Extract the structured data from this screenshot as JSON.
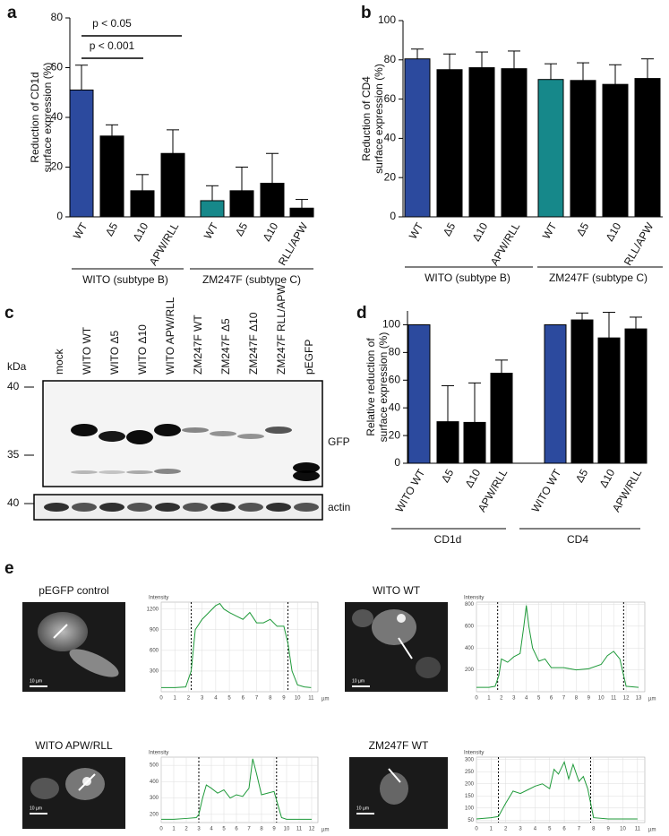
{
  "chart_data": [
    {
      "type": "bar",
      "panel": "a",
      "ylabel": [
        "Reduction of CD1d",
        "surface expression (%)"
      ],
      "categories": [
        "WT",
        "Δ5",
        "Δ10",
        "APW/RLL",
        "WT",
        "Δ5",
        "Δ10",
        "RLL/APW"
      ],
      "values": [
        51,
        32.5,
        10.5,
        25.5,
        6.5,
        10.5,
        13.5,
        3.5
      ],
      "errors": [
        10,
        4.5,
        6.5,
        9.5,
        6,
        9.5,
        12,
        3.5
      ],
      "colors": [
        "#2c4a9e",
        "#000000",
        "#000000",
        "#000000",
        "#16888a",
        "#000000",
        "#000000",
        "#000000"
      ],
      "ylim": [
        0,
        80
      ],
      "yticks": [
        0,
        20,
        40,
        60,
        80
      ],
      "groups": [
        "WITO (subtype B)",
        "ZM247F (subtype C)"
      ],
      "annotations": [
        "p < 0.05",
        "p < 0.001"
      ]
    },
    {
      "type": "bar",
      "panel": "b",
      "ylabel": [
        "Reduction of CD4",
        "surface expression (%)"
      ],
      "categories": [
        "WT",
        "Δ5",
        "Δ10",
        "APW/RLL",
        "WT",
        "Δ5",
        "Δ10",
        "RLL/APW"
      ],
      "values": [
        80.5,
        75,
        76,
        75.5,
        70,
        69.5,
        67.5,
        70.5
      ],
      "errors": [
        5,
        8,
        8,
        9,
        8,
        9,
        10,
        10
      ],
      "colors": [
        "#2c4a9e",
        "#000000",
        "#000000",
        "#000000",
        "#16888a",
        "#000000",
        "#000000",
        "#000000"
      ],
      "ylim": [
        0,
        100
      ],
      "yticks": [
        0,
        20,
        40,
        60,
        80,
        100
      ],
      "groups": [
        "WITO (subtype B)",
        "ZM247F (subtype C)"
      ]
    },
    {
      "type": "bar",
      "panel": "d",
      "ylabel": [
        "Relative reduction of",
        "surface expression (%)"
      ],
      "categories": [
        "WITO WT",
        "Δ5",
        "Δ10",
        "APW/RLL",
        "WITO WT",
        "Δ5",
        "Δ10",
        "APW/RLL"
      ],
      "values": [
        100,
        30,
        29.5,
        65,
        100,
        103.5,
        90.5,
        97
      ],
      "errors": [
        0,
        26,
        28.5,
        9.5,
        0,
        5,
        18.5,
        8.5
      ],
      "colors": [
        "#2c4a9e",
        "#000000",
        "#000000",
        "#000000",
        "#2c4a9e",
        "#000000",
        "#000000",
        "#000000"
      ],
      "ylim": [
        0,
        110
      ],
      "yticks": [
        0,
        20,
        40,
        60,
        80,
        100
      ],
      "groups": [
        "CD1d",
        "CD4"
      ]
    },
    {
      "type": "line",
      "panel": "e",
      "image_title": "pEGFP control",
      "scale_label": "10 µm",
      "ylabel": "Intensity",
      "xunit": "µm",
      "color": "#1f9a3a",
      "grid": true,
      "x": [
        0,
        1,
        1.8,
        2.2,
        2.5,
        3,
        3.5,
        4,
        4.3,
        4.6,
        5,
        5.5,
        6,
        6.5,
        7,
        7.5,
        8,
        8.5,
        9,
        9.3,
        9.6,
        10,
        10.5,
        11
      ],
      "values": [
        60,
        60,
        70,
        300,
        900,
        1050,
        1150,
        1250,
        1280,
        1200,
        1150,
        1100,
        1050,
        1150,
        1000,
        1000,
        1050,
        950,
        950,
        700,
        300,
        100,
        70,
        60
      ],
      "markers": [
        2.2,
        9.3
      ],
      "xlim": [
        0,
        11.5
      ],
      "ylim": [
        0,
        1300
      ],
      "xticks": [
        0,
        1,
        2,
        3,
        4,
        5,
        6,
        7,
        8,
        9,
        10,
        11
      ],
      "yticks": [
        300,
        600,
        900,
        1200
      ]
    },
    {
      "type": "line",
      "image_title": "WITO WT",
      "scale_label": "10 µm",
      "ylabel": "Intensity",
      "xunit": "µm",
      "color": "#1f9a3a",
      "grid": true,
      "x": [
        0,
        1,
        1.5,
        1.8,
        2,
        2.5,
        3,
        3.5,
        3.8,
        4,
        4.2,
        4.5,
        5,
        5.5,
        6,
        7,
        8,
        9,
        10,
        10.5,
        11,
        11.5,
        11.8,
        12,
        13
      ],
      "values": [
        40,
        40,
        50,
        150,
        300,
        270,
        320,
        350,
        600,
        790,
        600,
        400,
        280,
        300,
        220,
        220,
        200,
        210,
        250,
        330,
        370,
        300,
        150,
        50,
        40
      ],
      "markers": [
        1.7,
        11.8
      ],
      "xlim": [
        0,
        13.5
      ],
      "ylim": [
        0,
        820
      ],
      "xticks": [
        0,
        1,
        2,
        3,
        4,
        5,
        6,
        7,
        8,
        9,
        10,
        11,
        12,
        13
      ],
      "yticks": [
        200,
        400,
        600,
        800
      ]
    },
    {
      "type": "line",
      "image_title": "WITO APW/RLL",
      "scale_label": "10 µm",
      "ylabel": "Intensity",
      "xunit": "µm",
      "color": "#1f9a3a",
      "grid": true,
      "x": [
        0,
        1,
        2,
        2.8,
        3,
        3.3,
        3.6,
        4,
        4.5,
        5,
        5.5,
        6,
        6.5,
        7,
        7.3,
        7.6,
        8,
        8.5,
        9,
        9.3,
        9.6,
        10,
        11,
        12
      ],
      "values": [
        170,
        170,
        175,
        180,
        200,
        300,
        380,
        360,
        330,
        350,
        300,
        320,
        310,
        360,
        540,
        450,
        320,
        330,
        340,
        260,
        180,
        170,
        170,
        170
      ],
      "markers": [
        3,
        9.2
      ],
      "xlim": [
        0,
        12.5
      ],
      "ylim": [
        150,
        550
      ],
      "xticks": [
        0,
        1,
        2,
        3,
        4,
        5,
        6,
        7,
        8,
        9,
        10,
        11,
        12
      ],
      "yticks": [
        200,
        300,
        400,
        500
      ]
    },
    {
      "type": "line",
      "image_title": "ZM247F WT",
      "scale_label": "10 µm",
      "ylabel": "Intensity",
      "xunit": "µm",
      "color": "#1f9a3a",
      "grid": true,
      "x": [
        0,
        1,
        1.5,
        2,
        2.5,
        3,
        3.5,
        4,
        4.5,
        5,
        5.3,
        5.6,
        6,
        6.3,
        6.6,
        7,
        7.3,
        7.6,
        8,
        9,
        10,
        11
      ],
      "values": [
        55,
        60,
        65,
        120,
        170,
        160,
        175,
        190,
        200,
        180,
        260,
        240,
        290,
        220,
        280,
        210,
        230,
        180,
        60,
        55,
        55,
        55
      ],
      "markers": [
        1.5,
        7.8
      ],
      "xlim": [
        0,
        11.5
      ],
      "ylim": [
        40,
        310
      ],
      "xticks": [
        0,
        1,
        2,
        3,
        4,
        5,
        6,
        7,
        8,
        9,
        10,
        11
      ],
      "yticks": [
        50,
        100,
        150,
        200,
        250,
        300
      ]
    }
  ],
  "blot": {
    "panel": "c",
    "unit": "kDa",
    "lanes": [
      "mock",
      "WITO WT",
      "WITO Δ5",
      "WITO Δ10",
      "WITO APW/RLL",
      "ZM247F WT",
      "ZM247F Δ5",
      "ZM247F Δ10",
      "ZM247F RLL/APW",
      "pEGFP"
    ],
    "markers": [
      "40",
      "35",
      "40"
    ],
    "bands": [
      "GFP",
      "actin"
    ]
  }
}
